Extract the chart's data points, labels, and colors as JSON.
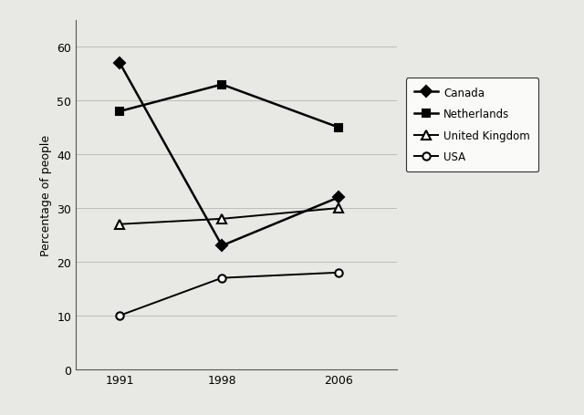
{
  "years": [
    1991,
    1998,
    2006
  ],
  "series": [
    {
      "label": "Canada",
      "values": [
        57,
        23,
        32
      ],
      "marker": "D",
      "color": "#000000",
      "linewidth": 1.8,
      "markersize": 6,
      "markerfacecolor": "#000000"
    },
    {
      "label": "Netherlands",
      "values": [
        48,
        53,
        45
      ],
      "marker": "s",
      "color": "#000000",
      "linewidth": 1.8,
      "markersize": 6,
      "markerfacecolor": "#000000"
    },
    {
      "label": "United Kingdom",
      "values": [
        27,
        28,
        30
      ],
      "marker": "^",
      "color": "#000000",
      "linewidth": 1.4,
      "markersize": 7,
      "markerfacecolor": "white"
    },
    {
      "label": "USA",
      "values": [
        10,
        17,
        18
      ],
      "marker": "o",
      "color": "#000000",
      "linewidth": 1.4,
      "markersize": 6,
      "markerfacecolor": "white"
    }
  ],
  "ylabel": "Percentage of people",
  "ylim": [
    0,
    65
  ],
  "yticks": [
    0,
    10,
    20,
    30,
    40,
    50,
    60
  ],
  "xlim": [
    1988,
    2010
  ],
  "background_color": "#e8e8e4",
  "plot_bg_color": "#e8e8e4"
}
